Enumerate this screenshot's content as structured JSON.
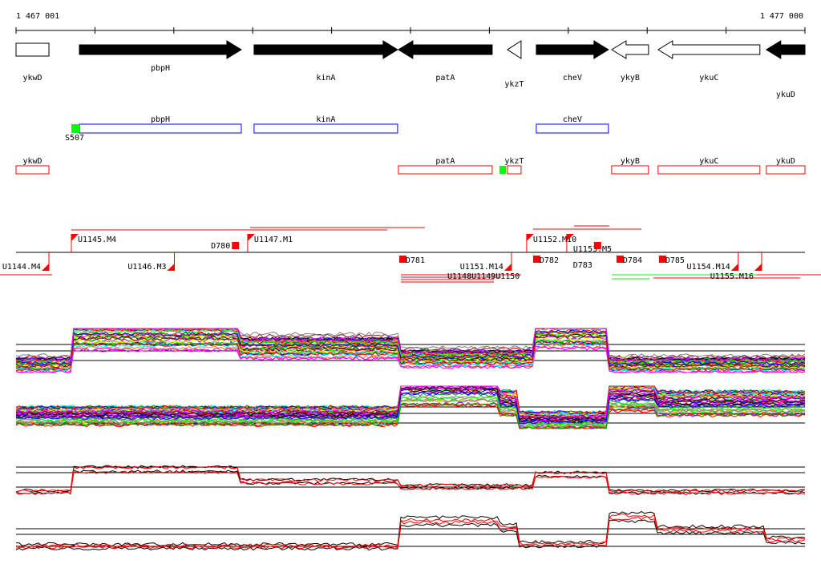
{
  "ruler": {
    "start": 1467001,
    "end": 1477000,
    "start_label": "1 467 001",
    "end_label": "1 477 000"
  },
  "genes": [
    {
      "name": "ykwD",
      "start": 1467001,
      "end": 1467418,
      "strand": "-",
      "filled": false,
      "box": true
    },
    {
      "name": "pbpH",
      "start": 1467804,
      "end": 1469856,
      "strand": "+",
      "filled": true
    },
    {
      "name": "kinA",
      "start": 1470018,
      "end": 1471837,
      "strand": "+",
      "filled": true
    },
    {
      "name": "patA",
      "start": 1471847,
      "end": 1473036,
      "strand": "-",
      "filled": true
    },
    {
      "name": "ykzT",
      "start": 1473229,
      "end": 1473402,
      "strand": "-",
      "filled": false
    },
    {
      "name": "cheV",
      "start": 1473595,
      "end": 1474509,
      "strand": "+",
      "filled": true
    },
    {
      "name": "ykyB",
      "start": 1474550,
      "end": 1475017,
      "strand": "-",
      "filled": false
    },
    {
      "name": "ykuC",
      "start": 1475139,
      "end": 1476429,
      "strand": "-",
      "filled": false
    },
    {
      "name": "ykuD",
      "start": 1476510,
      "end": 1477000,
      "strand": "-",
      "filled": true
    }
  ],
  "forward_features": [
    {
      "name": "pbpH",
      "start": 1467804,
      "end": 1469856
    },
    {
      "name": "kinA",
      "start": 1470018,
      "end": 1471837
    },
    {
      "name": "cheV",
      "start": 1473595,
      "end": 1474509
    }
  ],
  "forward_sites": [
    {
      "name": "S507",
      "start": 1467702,
      "end": 1467804
    }
  ],
  "reverse_features": [
    {
      "name": "ykwD",
      "start": 1467001,
      "end": 1467418
    },
    {
      "name": "patA",
      "start": 1471847,
      "end": 1473036
    },
    {
      "name": "ykzT",
      "start": 1473229,
      "end": 1473402
    },
    {
      "name": "ykyB",
      "start": 1474550,
      "end": 1475017
    },
    {
      "name": "ykuC",
      "start": 1475139,
      "end": 1476429
    },
    {
      "name": "ykuD",
      "start": 1476510,
      "end": 1477000
    }
  ],
  "reverse_sites": [
    {
      "start": 1473128,
      "end": 1473210
    }
  ],
  "segments_above": [
    {
      "name": "U1145.M4",
      "pos": 1467702
    },
    {
      "name": "U1147.M1",
      "pos": 1469937
    },
    {
      "name": "U1152.M10",
      "pos": 1473473
    },
    {
      "name": "U1153.M5",
      "pos": 1473981
    }
  ],
  "segments_below": [
    {
      "name": "U1144.M4",
      "pos": 1467418
    },
    {
      "name": "U1146.M3",
      "pos": 1469008
    },
    {
      "name": "U1151.M14",
      "pos": 1473280
    },
    {
      "name": "U1154.M14",
      "pos": 1476154
    },
    {
      "name": "U1155.M16",
      "pos": 1476451
    }
  ],
  "overlap_labels": "U1148U1149U1150",
  "deletions_above": [
    {
      "name": "D780",
      "pos": 1469737
    },
    {
      "name": "D783",
      "pos": 1474326
    }
  ],
  "deletions_below": [
    {
      "name": "D781",
      "pos": 1471847
    },
    {
      "name": "D782",
      "pos": 1473544
    },
    {
      "name": "D784",
      "pos": 1474601
    },
    {
      "name": "D785",
      "pos": 1475139
    }
  ],
  "colors": {
    "gene": "#000000",
    "forward_box": "#0000ff",
    "reverse_box": "#ff0000",
    "site": "#00ff00",
    "segment": "#ff0000"
  },
  "expression": {
    "series_colors": [
      "#ff0000",
      "#00ff00",
      "#0000ff",
      "#ff00ff",
      "#00ffff",
      "#ffff00",
      "#ff8000",
      "#8000ff",
      "#000000",
      "#808080",
      "#00a000",
      "#a00000"
    ],
    "panels": [
      {
        "segments": [
          [
            1467001,
            1467720,
            0.2
          ],
          [
            1467720,
            1469840,
            0.85
          ],
          [
            1469840,
            1471840,
            0.6
          ],
          [
            1471840,
            1473580,
            0.35
          ],
          [
            1473580,
            1474500,
            0.9
          ],
          [
            1474500,
            1477000,
            0.2
          ]
        ]
      },
      {
        "segments": [
          [
            1467001,
            1471840,
            0.3
          ],
          [
            1471840,
            1473100,
            0.9
          ],
          [
            1473100,
            1473360,
            0.6
          ],
          [
            1473360,
            1474520,
            0.2
          ],
          [
            1474520,
            1475100,
            0.75
          ],
          [
            1475100,
            1477000,
            0.6
          ]
        ]
      },
      {
        "segments": [
          [
            1467001,
            1467720,
            0.2
          ],
          [
            1467720,
            1469840,
            0.85
          ],
          [
            1469840,
            1471840,
            0.5
          ],
          [
            1471840,
            1473580,
            0.35
          ],
          [
            1473580,
            1474500,
            0.7
          ],
          [
            1474500,
            1477000,
            0.2
          ]
        ]
      },
      {
        "segments": [
          [
            1467001,
            1471840,
            0.15
          ],
          [
            1471840,
            1473100,
            0.75
          ],
          [
            1473100,
            1473360,
            0.6
          ],
          [
            1473360,
            1474520,
            0.2
          ],
          [
            1474520,
            1475100,
            0.85
          ],
          [
            1475100,
            1476500,
            0.55
          ],
          [
            1476500,
            1477000,
            0.3
          ]
        ]
      }
    ]
  }
}
